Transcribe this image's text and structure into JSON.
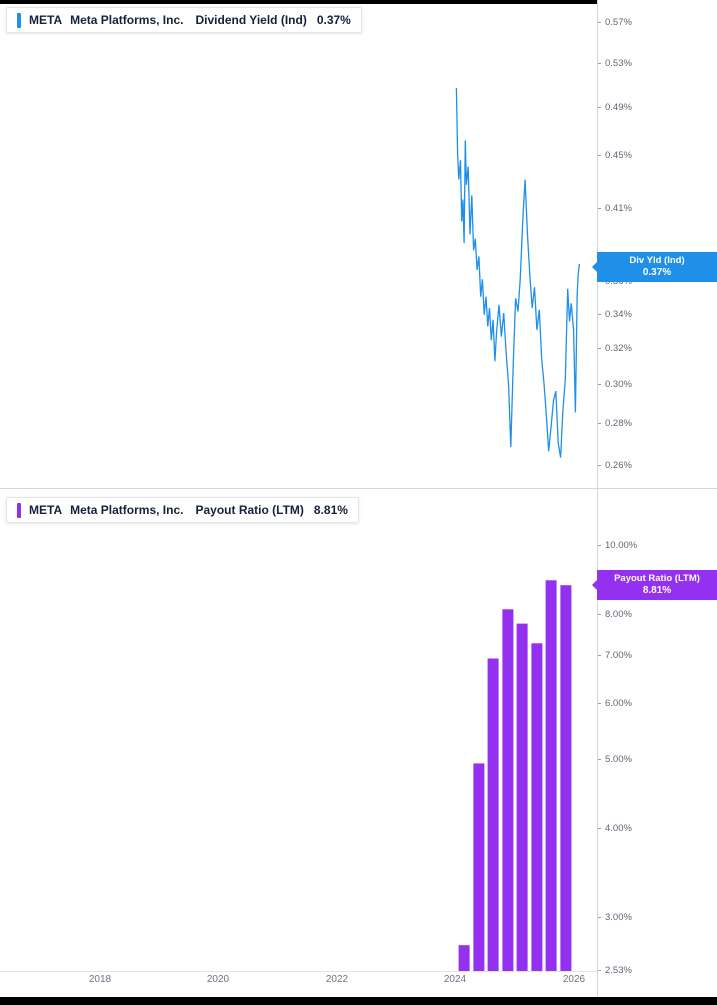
{
  "panels": {
    "dividend_yield": {
      "legend": {
        "ticker": "META",
        "company": "Meta Platforms, Inc.",
        "metric": "Dividend Yield (Ind)",
        "value": "0.37%"
      },
      "flag": {
        "line1": "Div Yld (Ind)",
        "line2": "0.37%"
      }
    },
    "payout_ratio": {
      "legend": {
        "ticker": "META",
        "company": "Meta Platforms, Inc.",
        "metric": "Payout Ratio (LTM)",
        "value": "8.81%"
      },
      "flag": {
        "line1": "Payout Ratio (LTM)",
        "line2": "8.81%"
      }
    }
  },
  "colors": {
    "line_blue": "#1f8fe8",
    "flag_blue": "#1f8fe8",
    "bar_purple": "#9430f0",
    "flag_purple": "#9430f0",
    "axis_text": "#5c6773"
  },
  "chart_data": [
    {
      "type": "line",
      "title": "META Meta Platforms, Inc. Dividend Yield (Ind)",
      "yscale": "log",
      "legend_position": "top-left",
      "grid": false,
      "last_value": 0.37,
      "yticks": [
        0.57,
        0.53,
        0.49,
        0.45,
        0.41,
        0.36,
        0.34,
        0.32,
        0.3,
        0.28,
        0.26
      ],
      "xticks": [
        2018,
        2020,
        2022,
        2024,
        2026
      ],
      "xrange": [
        2016.3,
        2026.4
      ],
      "ylim": [
        0.255,
        0.58
      ],
      "series": [
        {
          "name": "Div Yld (Ind)",
          "points": [
            [
              2024.02,
              0.508
            ],
            [
              2024.04,
              0.452
            ],
            [
              2024.06,
              0.432
            ],
            [
              2024.09,
              0.447
            ],
            [
              2024.11,
              0.401
            ],
            [
              2024.13,
              0.417
            ],
            [
              2024.15,
              0.386
            ],
            [
              2024.17,
              0.463
            ],
            [
              2024.19,
              0.428
            ],
            [
              2024.22,
              0.442
            ],
            [
              2024.25,
              0.392
            ],
            [
              2024.28,
              0.42
            ],
            [
              2024.31,
              0.381
            ],
            [
              2024.34,
              0.389
            ],
            [
              2024.37,
              0.368
            ],
            [
              2024.4,
              0.377
            ],
            [
              2024.43,
              0.351
            ],
            [
              2024.46,
              0.362
            ],
            [
              2024.49,
              0.34
            ],
            [
              2024.52,
              0.351
            ],
            [
              2024.55,
              0.333
            ],
            [
              2024.58,
              0.344
            ],
            [
              2024.61,
              0.325
            ],
            [
              2024.64,
              0.337
            ],
            [
              2024.67,
              0.313
            ],
            [
              2024.7,
              0.33
            ],
            [
              2024.74,
              0.346
            ],
            [
              2024.78,
              0.327
            ],
            [
              2024.82,
              0.341
            ],
            [
              2024.86,
              0.318
            ],
            [
              2024.9,
              0.301
            ],
            [
              2024.94,
              0.269
            ],
            [
              2024.98,
              0.311
            ],
            [
              2025.02,
              0.35
            ],
            [
              2025.06,
              0.342
            ],
            [
              2025.1,
              0.363
            ],
            [
              2025.14,
              0.401
            ],
            [
              2025.18,
              0.432
            ],
            [
              2025.22,
              0.393
            ],
            [
              2025.26,
              0.365
            ],
            [
              2025.3,
              0.344
            ],
            [
              2025.34,
              0.357
            ],
            [
              2025.38,
              0.331
            ],
            [
              2025.42,
              0.343
            ],
            [
              2025.46,
              0.315
            ],
            [
              2025.5,
              0.301
            ],
            [
              2025.54,
              0.284
            ],
            [
              2025.58,
              0.267
            ],
            [
              2025.62,
              0.279
            ],
            [
              2025.66,
              0.292
            ],
            [
              2025.7,
              0.297
            ],
            [
              2025.74,
              0.271
            ],
            [
              2025.78,
              0.264
            ],
            [
              2025.82,
              0.287
            ],
            [
              2025.86,
              0.303
            ],
            [
              2025.9,
              0.356
            ],
            [
              2025.93,
              0.336
            ],
            [
              2025.96,
              0.347
            ],
            [
              2026.0,
              0.331
            ],
            [
              2026.03,
              0.286
            ],
            [
              2026.06,
              0.353
            ],
            [
              2026.08,
              0.366
            ],
            [
              2026.1,
              0.372
            ]
          ]
        }
      ]
    },
    {
      "type": "bar",
      "title": "META Meta Platforms, Inc. Payout Ratio (LTM)",
      "yscale": "log",
      "legend_position": "top-left",
      "grid": false,
      "last_value": 8.81,
      "yticks": [
        10.0,
        8.0,
        7.0,
        6.0,
        5.0,
        4.0,
        3.0,
        2.53
      ],
      "xticks": [
        2018,
        2020,
        2022,
        2024,
        2026
      ],
      "xrange": [
        2016.3,
        2026.4
      ],
      "ylim": [
        2.53,
        10.6
      ],
      "x": [
        2024.15,
        2024.4,
        2024.64,
        2024.89,
        2025.13,
        2025.38,
        2025.62,
        2025.87
      ],
      "values": [
        2.75,
        4.95,
        6.95,
        8.15,
        7.78,
        7.3,
        8.95,
        8.81
      ]
    }
  ]
}
